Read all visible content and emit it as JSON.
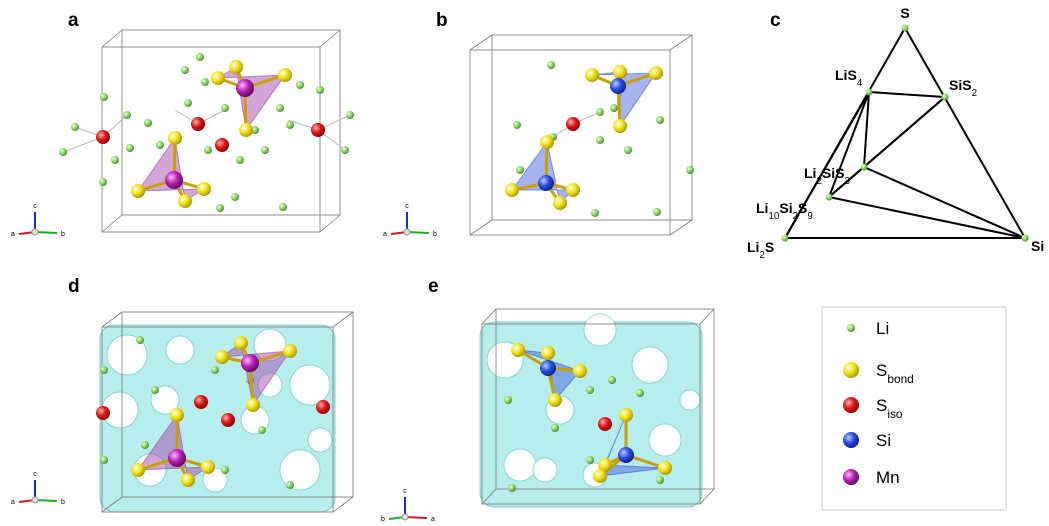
{
  "panel_labels": [
    "a",
    "b",
    "c",
    "d",
    "e"
  ],
  "axis_triads": [
    {
      "up": "c",
      "left": "a",
      "right": "b"
    },
    {
      "up": "c",
      "left": "a",
      "right": "b"
    },
    {
      "up": "c",
      "left": "a",
      "right": "b"
    },
    {
      "up": "c",
      "left": "b",
      "right": "a"
    }
  ],
  "phase_diagram": {
    "nodes": [
      {
        "label": [
          {
            "text": "S"
          }
        ]
      },
      {
        "label": [
          {
            "text": "LiS"
          },
          {
            "text": "4",
            "sub": true
          }
        ]
      },
      {
        "label": [
          {
            "text": "SiS"
          },
          {
            "text": "2",
            "sub": true
          }
        ]
      },
      {
        "label": [
          {
            "text": "Li"
          },
          {
            "text": "2",
            "sub": true
          },
          {
            "text": "SiS"
          },
          {
            "text": "3",
            "sub": true
          }
        ]
      },
      {
        "label": [
          {
            "text": "Li"
          },
          {
            "text": "10",
            "sub": true
          },
          {
            "text": "Si"
          },
          {
            "text": "2",
            "sub": true
          },
          {
            "text": "S"
          },
          {
            "text": "9",
            "sub": true
          }
        ]
      },
      {
        "label": [
          {
            "text": "Li"
          },
          {
            "text": "2",
            "sub": true
          },
          {
            "text": "S"
          }
        ]
      },
      {
        "label": [
          {
            "text": "Si"
          }
        ]
      }
    ]
  },
  "legend": {
    "items": [
      {
        "label": [
          {
            "text": "Li"
          }
        ]
      },
      {
        "label": [
          {
            "text": "S"
          },
          {
            "text": "bond",
            "sub": true
          }
        ]
      },
      {
        "label": [
          {
            "text": "S"
          },
          {
            "text": "iso",
            "sub": true
          }
        ]
      },
      {
        "label": [
          {
            "text": "Si"
          }
        ]
      },
      {
        "label": [
          {
            "text": "Mn"
          }
        ]
      }
    ]
  }
}
